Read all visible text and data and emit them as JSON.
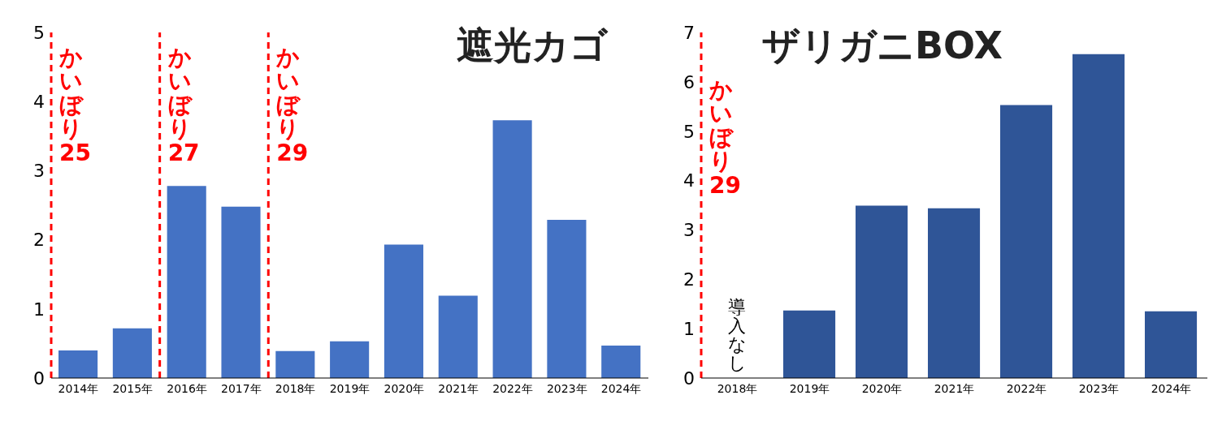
{
  "chart_data": [
    {
      "type": "bar",
      "title": "遮光カゴ",
      "x": [
        2014,
        2015,
        2016,
        2017,
        2018,
        2019,
        2020,
        2021,
        2022,
        2023,
        2024
      ],
      "values": [
        0.4,
        0.72,
        2.78,
        2.48,
        0.39,
        0.53,
        1.93,
        1.19,
        3.73,
        2.29,
        0.47
      ],
      "color": "#4472c4",
      "xlim": [
        2013.5,
        2024.5
      ],
      "xticks": [
        {
          "value": 2014,
          "label": "2014年"
        },
        {
          "value": 2015,
          "label": "2015年"
        },
        {
          "value": 2016,
          "label": "2016年"
        },
        {
          "value": 2017,
          "label": "2017年"
        },
        {
          "value": 2018,
          "label": "2018年"
        },
        {
          "value": 2019,
          "label": "2019年"
        },
        {
          "value": 2020,
          "label": "2020年"
        },
        {
          "value": 2021,
          "label": "2021年"
        },
        {
          "value": 2022,
          "label": "2022年"
        },
        {
          "value": 2023,
          "label": "2023年"
        },
        {
          "value": 2024,
          "label": "2024年"
        }
      ],
      "ylim": [
        0,
        5
      ],
      "yticks": [
        0,
        1,
        2,
        3,
        4,
        5
      ],
      "grid": false,
      "legend": false,
      "ref_lines": [
        {
          "axis": "x",
          "value": 2013.5,
          "label": "かいぼり25",
          "color": "#ff0000",
          "line_style": "dashed"
        },
        {
          "axis": "x",
          "value": 2015.5,
          "label": "かいぼり27",
          "color": "#ff0000",
          "line_style": "dashed"
        },
        {
          "axis": "x",
          "value": 2017.5,
          "label": "かいぼり29",
          "color": "#ff0000",
          "line_style": "dashed"
        }
      ]
    },
    {
      "type": "bar",
      "title": "ザリガニBOX",
      "x": [
        2018,
        2019,
        2020,
        2021,
        2022,
        2023,
        2024
      ],
      "values": [
        0,
        1.37,
        3.49,
        3.44,
        5.53,
        6.56,
        1.35
      ],
      "color": "#2f5597",
      "xlim": [
        2017.5,
        2024.5
      ],
      "xticks": [
        {
          "value": 2018,
          "label": "2018年"
        },
        {
          "value": 2019,
          "label": "2019年"
        },
        {
          "value": 2020,
          "label": "2020年"
        },
        {
          "value": 2021,
          "label": "2021年"
        },
        {
          "value": 2022,
          "label": "2022年"
        },
        {
          "value": 2023,
          "label": "2023年"
        },
        {
          "value": 2024,
          "label": "2024年"
        }
      ],
      "ylim": [
        0,
        7
      ],
      "yticks": [
        0,
        1,
        2,
        3,
        4,
        5,
        6,
        7
      ],
      "grid": false,
      "legend": false,
      "annotations": [
        "導入なし"
      ],
      "ref_lines": [
        {
          "axis": "x",
          "value": 2017.5,
          "label": "かいぼり29",
          "color": "#ff0000",
          "line_style": "dashed"
        }
      ]
    }
  ]
}
